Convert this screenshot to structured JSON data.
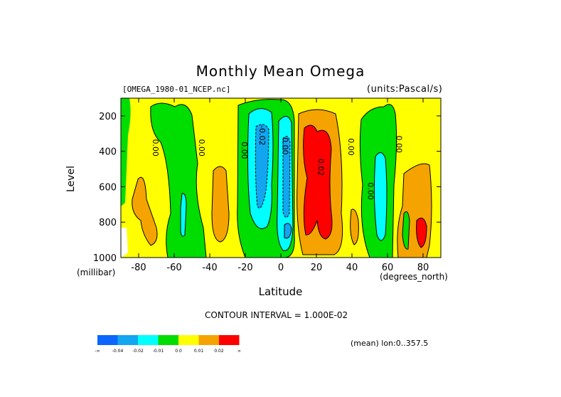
{
  "title": "Monthly Mean Omega",
  "dataset": "[OMEGA_1980-01_NCEP.nc]",
  "units": "(units:Pascal/s)",
  "contour_interval": "CONTOUR INTERVAL = 1.000E-02",
  "mean_note": "(mean) lon:0..357.5",
  "colors": {
    "c1": "#0a66ff",
    "c2": "#12a6f0",
    "c3": "#00ffff",
    "c4": "#00dd00",
    "c5": "#ffff00",
    "c6": "#f5a300",
    "c7": "#ff0000"
  },
  "chart_data": {
    "type": "heatmap",
    "title": "Monthly Mean Omega",
    "xlabel": "Latitude",
    "ylabel": "Level",
    "x_unit": "(degrees_north)",
    "y_unit": "(millibar)",
    "xlim": [
      -90,
      90
    ],
    "ylim": [
      1000,
      100
    ],
    "x_ticks": [
      -80,
      -60,
      -40,
      -20,
      0,
      20,
      40,
      60,
      80
    ],
    "x_tick_labels": [
      "-80",
      "-60",
      "-40",
      "-20",
      "0",
      "20",
      "40",
      "60",
      "80"
    ],
    "y_ticks": [
      200,
      400,
      600,
      800,
      1000
    ],
    "y_tick_labels": [
      "200",
      "400",
      "600",
      "800",
      "1000"
    ],
    "contour_labels": [
      {
        "text": "0.00",
        "lat": -72,
        "lev": 380
      },
      {
        "text": "0.00",
        "lat": -46,
        "lev": 380
      },
      {
        "text": "0.00",
        "lat": -22,
        "lev": 395
      },
      {
        "text": "-0.02",
        "lat": -12,
        "lev": 310
      },
      {
        "text": "0.00",
        "lat": 1,
        "lev": 370
      },
      {
        "text": "0.02",
        "lat": 21,
        "lev": 490
      },
      {
        "text": "0.00",
        "lat": 38,
        "lev": 375
      },
      {
        "text": "0.00",
        "lat": 49,
        "lev": 625
      },
      {
        "text": "0.00",
        "lat": 65,
        "lev": 360
      }
    ],
    "colorbar": {
      "labels": [
        "-∞",
        "-0.04",
        "-0.02",
        "-0.01",
        "0.0",
        "0.01",
        "0.02",
        "∞"
      ],
      "colors": [
        "#0a66ff",
        "#12a6f0",
        "#00ffff",
        "#00dd00",
        "#ffff00",
        "#f5a300",
        "#ff0000"
      ]
    }
  }
}
